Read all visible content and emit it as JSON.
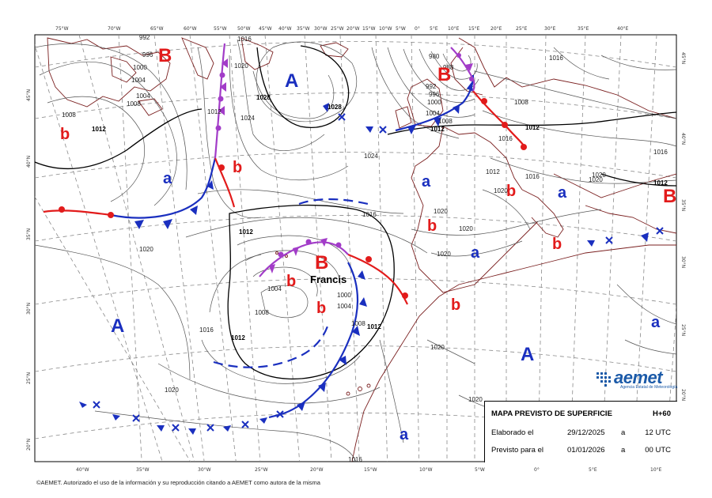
{
  "colors": {
    "high": "#1a2fbf",
    "low": "#e21b1b",
    "occluded": "#a23cc8",
    "coast": "#7a1f1f",
    "isobar": "#555555",
    "grid": "#888888",
    "logo": "#1b5aa8"
  },
  "info": {
    "title": "MAPA PREVISTO DE SUPERFICIE",
    "step": "H+60",
    "made_label": "Elaborado el",
    "made_date": "29/12/2025",
    "made_sep": "a",
    "made_time": "12 UTC",
    "valid_label": "Previsto para el",
    "valid_date": "01/01/2026",
    "valid_sep": "a",
    "valid_time": "00 UTC"
  },
  "logo": {
    "name": "aemet",
    "subtitle": "Agencia Estatal de Meteorología"
  },
  "copyright": "©AEMET. Autorizado el uso de la información y su reproducción citando a AEMET como autora de la misma",
  "storm_name": "Francis",
  "top_lon_labels": [
    "75°W",
    "70°W",
    "65°W",
    "60°W",
    "55°W",
    "50°W",
    "45°W",
    "40°W",
    "35°W",
    "30°W",
    "25°W",
    "20°W",
    "15°W",
    "10°W",
    "5°W",
    "0°",
    "5°E",
    "10°E",
    "15°E",
    "20°E",
    "25°E",
    "30°E",
    "35°E",
    "40°E"
  ],
  "bottom_lon_labels": [
    "40°W",
    "35°W",
    "30°W",
    "25°W",
    "20°W",
    "15°W",
    "10°W",
    "5°W",
    "0°",
    "5°E",
    "10°E"
  ],
  "left_lat_labels": [
    "45°N",
    "40°N",
    "35°N",
    "30°N",
    "25°N",
    "20°N"
  ],
  "right_lat_labels": [
    "45°N",
    "40°N",
    "35°N",
    "30°N",
    "25°N",
    "20°N"
  ],
  "pressure_systems": [
    {
      "type": "B",
      "label": "B"
    },
    {
      "type": "A",
      "label": "A"
    },
    {
      "type": "B",
      "label": "B"
    },
    {
      "type": "B",
      "label": "B"
    },
    {
      "type": "A",
      "label": "A"
    },
    {
      "type": "A",
      "label": "A"
    },
    {
      "type": "B",
      "label": "B"
    },
    {
      "type": "b",
      "label": "b"
    },
    {
      "type": "b",
      "label": "b"
    },
    {
      "type": "b",
      "label": "b"
    },
    {
      "type": "b",
      "label": "b"
    },
    {
      "type": "b",
      "label": "b"
    },
    {
      "type": "b",
      "label": "b"
    },
    {
      "type": "b",
      "label": "b"
    },
    {
      "type": "b",
      "label": "b"
    },
    {
      "type": "a",
      "label": "a"
    },
    {
      "type": "a",
      "label": "a"
    },
    {
      "type": "a",
      "label": "a"
    },
    {
      "type": "a",
      "label": "a"
    },
    {
      "type": "a",
      "label": "a"
    },
    {
      "type": "a",
      "label": "a"
    }
  ],
  "isobar_labels": [
    "992",
    "996",
    "1000",
    "1004",
    "1008",
    "1012",
    "1008",
    "1016",
    "1020",
    "1024",
    "1028",
    "1028",
    "1024",
    "1016",
    "1012",
    "1008",
    "1004",
    "1000",
    "1004",
    "1008",
    "1012",
    "1012",
    "1016",
    "1020",
    "1016",
    "1020",
    "1020",
    "1020",
    "1020",
    "1020",
    "1016",
    "1020",
    "1016",
    "1012",
    "980",
    "988",
    "992",
    "996",
    "1000",
    "1004",
    "1008",
    "1012",
    "1008",
    "1016",
    "1012",
    "1020",
    "1020",
    "1020",
    "1016",
    "1012",
    "1012",
    "1004"
  ]
}
